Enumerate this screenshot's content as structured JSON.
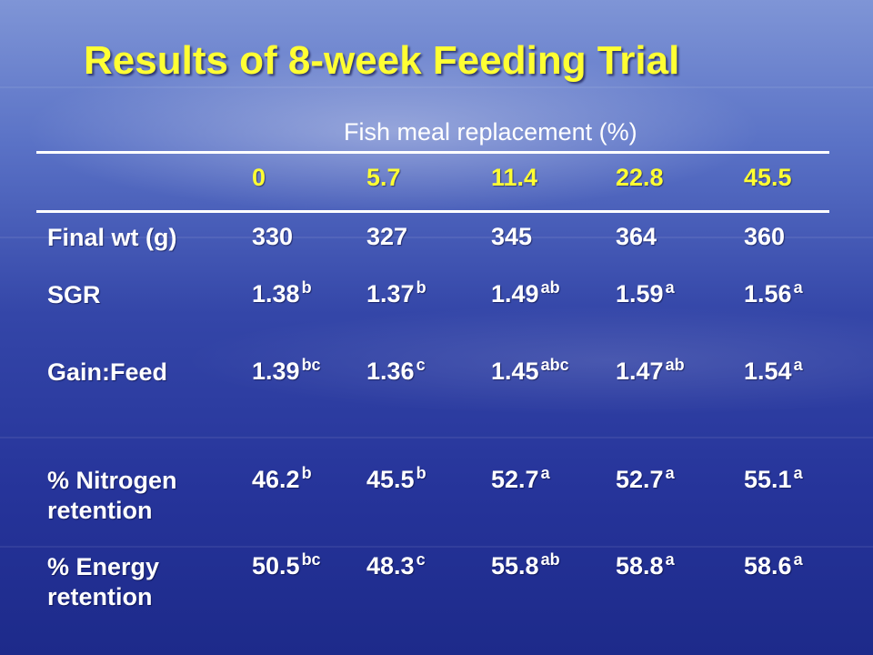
{
  "title": "Results of 8-week Feeding Trial",
  "caption": "Fish meal replacement (%)",
  "columns": [
    "0",
    "5.7",
    "11.4",
    "22.8",
    "45.5"
  ],
  "rows": [
    {
      "label": "Final wt (g)",
      "values": [
        {
          "v": "330",
          "s": ""
        },
        {
          "v": "327",
          "s": ""
        },
        {
          "v": "345",
          "s": ""
        },
        {
          "v": "364",
          "s": ""
        },
        {
          "v": "360",
          "s": ""
        }
      ]
    },
    {
      "label": "SGR",
      "values": [
        {
          "v": "1.38",
          "s": "b"
        },
        {
          "v": "1.37",
          "s": "b"
        },
        {
          "v": "1.49",
          "s": "ab"
        },
        {
          "v": "1.59",
          "s": "a"
        },
        {
          "v": "1.56",
          "s": "a"
        }
      ]
    },
    {
      "label": "Gain:Feed",
      "values": [
        {
          "v": "1.39",
          "s": "bc"
        },
        {
          "v": "1.36",
          "s": "c"
        },
        {
          "v": "1.45",
          "s": "abc"
        },
        {
          "v": "1.47",
          "s": "ab"
        },
        {
          "v": "1.54",
          "s": "a"
        }
      ]
    },
    {
      "label": "% Nitrogen retention",
      "values": [
        {
          "v": "46.2",
          "s": "b"
        },
        {
          "v": "45.5",
          "s": "b"
        },
        {
          "v": "52.7",
          "s": "a"
        },
        {
          "v": "52.7",
          "s": "a"
        },
        {
          "v": "55.1",
          "s": "a"
        }
      ]
    },
    {
      "label": "% Energy retention",
      "values": [
        {
          "v": "50.5",
          "s": "bc"
        },
        {
          "v": "48.3",
          "s": "c"
        },
        {
          "v": "55.8",
          "s": "ab"
        },
        {
          "v": "58.8",
          "s": "a"
        },
        {
          "v": "58.6",
          "s": "a"
        }
      ]
    }
  ],
  "colors": {
    "title": "#ffff33",
    "header": "#ffff33",
    "text": "#ffffff"
  }
}
